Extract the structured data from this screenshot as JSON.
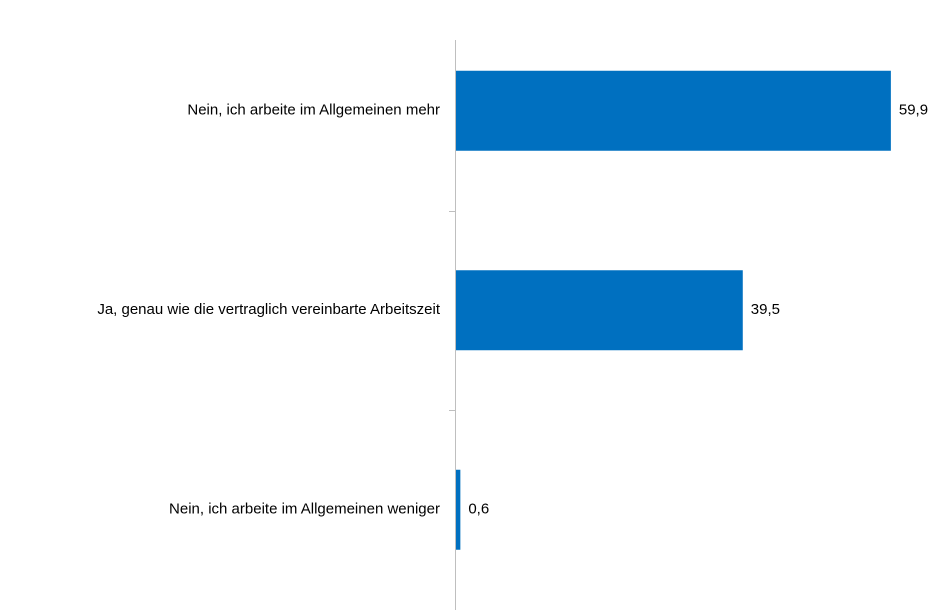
{
  "chart_data": {
    "type": "bar",
    "orientation": "horizontal",
    "categories": [
      "Nein, ich arbeite im Allgemeinen mehr",
      "Ja, genau wie die vertraglich vereinbarte Arbeitszeit",
      "Nein, ich arbeite im Allgemeinen weniger"
    ],
    "values": [
      59.9,
      39.5,
      0.6
    ],
    "value_labels": [
      "59,9",
      "39,5",
      "0,6"
    ],
    "color": "#0070c0"
  }
}
